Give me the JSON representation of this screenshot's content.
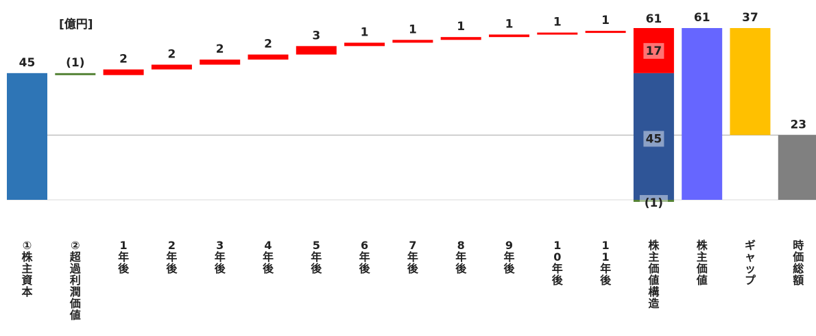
{
  "chart_data": {
    "type": "bar",
    "subtype": "waterfall",
    "unit_label": "[億円]",
    "ylim": [
      -1,
      62
    ],
    "baseline_value": 23,
    "categories": [
      "①株主資本",
      "②超過利潤価値",
      "1年後",
      "2年後",
      "3年後",
      "4年後",
      "5年後",
      "6年後",
      "7年後",
      "8年後",
      "9年後",
      "10年後",
      "11年後",
      "株主価値構造",
      "株主価値",
      "ギャップ",
      "時価総額"
    ],
    "bars": [
      {
        "label": "45",
        "from": 0,
        "to": 45,
        "color": "#2E75B6"
      },
      {
        "label": "(1)",
        "from": 45,
        "to": 44.3,
        "color": "#548235"
      },
      {
        "label": "2",
        "from": 44.3,
        "to": 46.3,
        "color": "#FF0000"
      },
      {
        "label": "2",
        "from": 46.3,
        "to": 48.0,
        "color": "#FF0000"
      },
      {
        "label": "2",
        "from": 48.0,
        "to": 49.8,
        "color": "#FF0000"
      },
      {
        "label": "2",
        "from": 49.8,
        "to": 51.6,
        "color": "#FF0000"
      },
      {
        "label": "3",
        "from": 51.6,
        "to": 54.6,
        "color": "#FF0000"
      },
      {
        "label": "1",
        "from": 54.6,
        "to": 55.8,
        "color": "#FF0000"
      },
      {
        "label": "1",
        "from": 55.8,
        "to": 56.8,
        "color": "#FF0000"
      },
      {
        "label": "1",
        "from": 56.8,
        "to": 57.8,
        "color": "#FF0000"
      },
      {
        "label": "1",
        "from": 57.8,
        "to": 58.7,
        "color": "#FF0000"
      },
      {
        "label": "1",
        "from": 58.7,
        "to": 59.4,
        "color": "#FF0000"
      },
      {
        "label": "1",
        "from": 59.4,
        "to": 60.0,
        "color": "#FF0000"
      },
      {
        "label": "61",
        "stacked": [
          {
            "label": "(1)",
            "from": 0,
            "to": -0.7,
            "color": "#548235"
          },
          {
            "label": "45",
            "from": 0,
            "to": 45,
            "color": "#2F5597"
          },
          {
            "label": "17",
            "from": 45,
            "to": 61,
            "color": "#FF0000"
          }
        ]
      },
      {
        "label": "61",
        "from": 0,
        "to": 61,
        "color": "#6666FF"
      },
      {
        "label": "37",
        "from": 23,
        "to": 61,
        "color": "#FFC000"
      },
      {
        "label": "23",
        "from": 0,
        "to": 23,
        "color": "#808080"
      }
    ]
  }
}
